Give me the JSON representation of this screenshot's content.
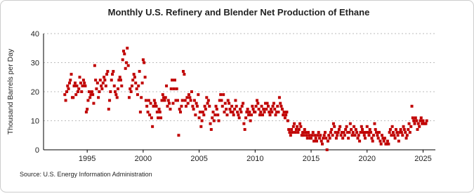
{
  "chart_data": {
    "type": "scatter",
    "title": "Monthly U.S. Refinery and Blender Net Production of Ethane",
    "y_label": "Thousand Barrels per Day",
    "source": "Source: U.S. Energy Information Administration",
    "color": "#c00000",
    "grid": true,
    "xlim": [
      1991.1,
      2026.1
    ],
    "xticks": [
      1995,
      2000,
      2005,
      2010,
      2015,
      2020,
      2025
    ],
    "ylim": [
      0,
      40
    ],
    "yticks": [
      0,
      10,
      20,
      30,
      40
    ],
    "x": [
      1993.0,
      1993.08,
      1993.17,
      1993.25,
      1993.33,
      1993.42,
      1993.5,
      1993.58,
      1993.67,
      1993.75,
      1993.83,
      1993.92,
      1994.0,
      1994.08,
      1994.17,
      1994.25,
      1994.33,
      1994.42,
      1994.5,
      1994.58,
      1994.67,
      1994.75,
      1994.83,
      1994.92,
      1995.0,
      1995.08,
      1995.17,
      1995.25,
      1995.33,
      1995.42,
      1995.5,
      1995.58,
      1995.67,
      1995.75,
      1995.83,
      1995.92,
      1996.0,
      1996.08,
      1996.17,
      1996.25,
      1996.33,
      1996.42,
      1996.5,
      1996.58,
      1996.67,
      1996.75,
      1996.83,
      1996.92,
      1997.0,
      1997.08,
      1997.17,
      1997.25,
      1997.33,
      1997.42,
      1997.5,
      1997.58,
      1997.67,
      1997.75,
      1997.83,
      1997.92,
      1998.0,
      1998.08,
      1998.17,
      1998.25,
      1998.33,
      1998.42,
      1998.5,
      1998.58,
      1998.67,
      1998.75,
      1998.83,
      1998.92,
      1999.0,
      1999.08,
      1999.17,
      1999.25,
      1999.33,
      1999.42,
      1999.5,
      1999.58,
      1999.67,
      1999.75,
      1999.83,
      1999.92,
      2000.0,
      2000.08,
      2000.17,
      2000.25,
      2000.33,
      2000.42,
      2000.5,
      2000.58,
      2000.67,
      2000.75,
      2000.83,
      2000.92,
      2001.0,
      2001.08,
      2001.17,
      2001.25,
      2001.33,
      2001.42,
      2001.5,
      2001.58,
      2001.67,
      2001.75,
      2001.83,
      2001.92,
      2002.0,
      2002.08,
      2002.17,
      2002.25,
      2002.33,
      2002.42,
      2002.5,
      2002.58,
      2002.67,
      2002.75,
      2002.83,
      2002.92,
      2003.0,
      2003.08,
      2003.17,
      2003.25,
      2003.33,
      2003.42,
      2003.5,
      2003.58,
      2003.67,
      2003.75,
      2003.83,
      2003.92,
      2004.0,
      2004.08,
      2004.17,
      2004.25,
      2004.33,
      2004.42,
      2004.5,
      2004.58,
      2004.67,
      2004.75,
      2004.83,
      2004.92,
      2005.0,
      2005.08,
      2005.17,
      2005.25,
      2005.33,
      2005.42,
      2005.5,
      2005.58,
      2005.67,
      2005.75,
      2005.83,
      2005.92,
      2006.0,
      2006.08,
      2006.17,
      2006.25,
      2006.33,
      2006.42,
      2006.5,
      2006.58,
      2006.67,
      2006.75,
      2006.83,
      2006.92,
      2007.0,
      2007.08,
      2007.17,
      2007.25,
      2007.33,
      2007.42,
      2007.5,
      2007.58,
      2007.67,
      2007.75,
      2007.83,
      2007.92,
      2008.0,
      2008.08,
      2008.17,
      2008.25,
      2008.33,
      2008.42,
      2008.5,
      2008.58,
      2008.67,
      2008.75,
      2008.83,
      2008.92,
      2009.0,
      2009.08,
      2009.17,
      2009.25,
      2009.33,
      2009.42,
      2009.5,
      2009.58,
      2009.67,
      2009.75,
      2009.83,
      2009.92,
      2010.0,
      2010.08,
      2010.17,
      2010.25,
      2010.33,
      2010.42,
      2010.5,
      2010.58,
      2010.67,
      2010.75,
      2010.83,
      2010.92,
      2011.0,
      2011.08,
      2011.17,
      2011.25,
      2011.33,
      2011.42,
      2011.5,
      2011.58,
      2011.67,
      2011.75,
      2011.83,
      2011.92,
      2012.0,
      2012.08,
      2012.17,
      2012.25,
      2012.33,
      2012.42,
      2012.5,
      2012.58,
      2012.67,
      2012.75,
      2012.83,
      2012.92,
      2013.0,
      2013.08,
      2013.17,
      2013.25,
      2013.33,
      2013.42,
      2013.5,
      2013.58,
      2013.67,
      2013.75,
      2013.83,
      2013.92,
      2014.0,
      2014.08,
      2014.17,
      2014.25,
      2014.33,
      2014.42,
      2014.5,
      2014.58,
      2014.67,
      2014.75,
      2014.83,
      2014.92,
      2015.0,
      2015.08,
      2015.17,
      2015.25,
      2015.33,
      2015.42,
      2015.5,
      2015.58,
      2015.67,
      2015.75,
      2015.83,
      2015.92,
      2016.0,
      2016.08,
      2016.17,
      2016.25,
      2016.33,
      2016.42,
      2016.5,
      2016.58,
      2016.67,
      2016.75,
      2016.83,
      2016.92,
      2017.0,
      2017.08,
      2017.17,
      2017.25,
      2017.33,
      2017.42,
      2017.5,
      2017.58,
      2017.67,
      2017.75,
      2017.83,
      2017.92,
      2018.0,
      2018.08,
      2018.17,
      2018.25,
      2018.33,
      2018.42,
      2018.5,
      2018.58,
      2018.67,
      2018.75,
      2018.83,
      2018.92,
      2019.0,
      2019.08,
      2019.17,
      2019.25,
      2019.33,
      2019.42,
      2019.5,
      2019.58,
      2019.67,
      2019.75,
      2019.83,
      2019.92,
      2020.0,
      2020.08,
      2020.17,
      2020.25,
      2020.33,
      2020.42,
      2020.5,
      2020.58,
      2020.67,
      2020.75,
      2020.83,
      2020.92,
      2021.0,
      2021.08,
      2021.17,
      2021.25,
      2021.33,
      2021.42,
      2021.5,
      2021.58,
      2021.67,
      2021.75,
      2021.83,
      2021.92,
      2022.0,
      2022.08,
      2022.17,
      2022.25,
      2022.33,
      2022.42,
      2022.5,
      2022.58,
      2022.67,
      2022.75,
      2022.83,
      2022.92,
      2023.0,
      2023.08,
      2023.17,
      2023.25,
      2023.33,
      2023.42,
      2023.5,
      2023.58,
      2023.67,
      2023.75,
      2023.83,
      2023.92,
      2024.0,
      2024.08,
      2024.17,
      2024.25,
      2024.33,
      2024.42,
      2024.5,
      2024.58,
      2024.67,
      2024.75,
      2024.83,
      2024.92,
      2025.0,
      2025.08,
      2025.17,
      2025.25,
      2025.33
    ],
    "values": [
      19,
      17,
      20,
      22,
      21,
      23,
      24,
      26,
      18,
      18,
      22,
      23,
      19,
      22,
      20,
      21,
      25,
      23,
      20,
      22,
      24,
      23,
      22,
      13,
      14,
      17,
      20,
      18,
      19,
      20,
      19,
      16,
      29,
      24,
      21,
      23,
      18,
      20,
      24,
      22,
      21,
      23,
      25,
      24,
      22,
      26,
      27,
      14,
      17,
      20,
      24,
      26,
      27,
      22,
      20,
      19,
      18,
      21,
      24,
      25,
      24,
      22,
      31,
      34,
      33,
      28,
      30,
      35,
      29,
      18,
      21,
      20,
      22,
      24,
      26,
      25,
      23,
      21,
      19,
      22,
      27,
      13,
      18,
      23,
      31,
      30,
      25,
      17,
      15,
      13,
      17,
      12,
      16,
      11,
      8,
      15,
      17,
      16,
      15,
      13,
      11,
      14,
      13,
      11,
      17,
      19,
      18,
      17,
      18,
      22,
      15,
      17,
      16,
      14,
      21,
      24,
      16,
      21,
      24,
      17,
      21,
      17,
      5,
      14,
      13,
      15,
      17,
      27,
      26,
      17,
      15,
      18,
      16,
      19,
      18,
      17,
      20,
      15,
      14,
      17,
      12,
      16,
      15,
      19,
      11,
      13,
      8,
      10,
      13,
      12,
      15,
      14,
      18,
      16,
      17,
      15,
      9,
      7,
      11,
      13,
      10,
      12,
      15,
      14,
      12,
      10,
      17,
      19,
      17,
      15,
      19,
      13,
      16,
      14,
      12,
      17,
      16,
      14,
      13,
      15,
      13,
      12,
      14,
      17,
      15,
      13,
      12,
      11,
      14,
      13,
      15,
      16,
      9,
      7,
      11,
      13,
      14,
      12,
      13,
      10,
      12,
      15,
      14,
      13,
      13,
      15,
      17,
      16,
      14,
      12,
      13,
      15,
      12,
      14,
      13,
      16,
      14,
      16,
      15,
      13,
      12,
      14,
      13,
      15,
      16,
      14,
      12,
      13,
      15,
      13,
      18,
      16,
      15,
      14,
      12,
      13,
      11,
      12,
      13,
      10,
      7,
      6,
      5,
      7,
      6,
      8,
      9,
      6,
      7,
      8,
      6,
      7,
      9,
      8,
      5,
      6,
      5,
      7,
      6,
      5,
      4,
      6,
      5,
      4,
      4,
      5,
      6,
      3,
      5,
      4,
      3,
      5,
      6,
      4,
      5,
      3,
      2,
      4,
      5,
      6,
      4,
      0,
      3,
      5,
      4,
      6,
      7,
      5,
      9,
      8,
      6,
      4,
      5,
      6,
      7,
      8,
      5,
      6,
      4,
      6,
      5,
      7,
      8,
      6,
      4,
      6,
      9,
      7,
      5,
      6,
      8,
      5,
      7,
      6,
      4,
      5,
      3,
      6,
      8,
      7,
      6,
      5,
      4,
      6,
      8,
      6,
      5,
      7,
      6,
      4,
      3,
      5,
      9,
      7,
      6,
      5,
      4,
      6,
      3,
      2,
      5,
      4,
      3,
      4,
      2,
      2,
      3,
      2,
      6,
      7,
      5,
      8,
      6,
      5,
      4,
      7,
      6,
      5,
      3,
      6,
      7,
      6,
      5,
      8,
      7,
      6,
      4,
      5,
      7,
      9,
      6,
      8,
      15,
      11,
      10,
      9,
      11,
      10,
      7,
      9,
      8,
      10,
      11,
      9,
      10,
      9,
      9,
      9,
      10
    ]
  }
}
